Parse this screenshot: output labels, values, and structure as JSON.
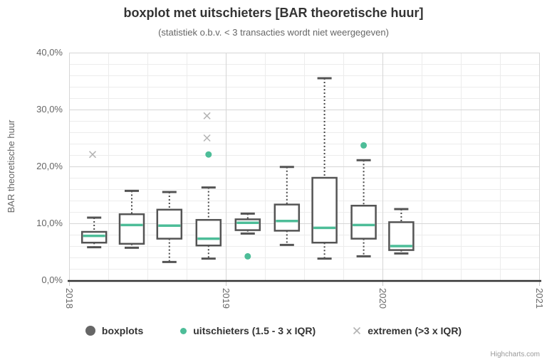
{
  "chart": {
    "title": "boxplot met uitschieters [BAR theoretische huur]",
    "subtitle": "(statistiek o.b.v. < 3 transacties wordt niet weergegeven)",
    "credits": "Highcharts.com"
  },
  "legend": {
    "items": [
      {
        "label": "boxplots"
      },
      {
        "label": "uitschieters (1.5 - 3 x IQR)"
      },
      {
        "label": "extremen (>3 x IQR)"
      }
    ]
  },
  "colors": {
    "title_text": "#333333",
    "subtitle_text": "#666666",
    "axis_text": "#666666",
    "grid_minor": "#ececec",
    "grid_major": "#d6d6d6",
    "axis_line": "#333333",
    "tick": "#cccccc",
    "box_border": "#545454",
    "box_fill": "#ffffff",
    "whisker": "#474747",
    "median": "#4dbd98",
    "outlier": "#4dbd98",
    "extreme": "#b3b3b3",
    "legend_symbol": "#666666",
    "legend_text": "#333333",
    "credits_text": "#999999"
  },
  "chart_data": {
    "type": "boxplot",
    "title": "boxplot met uitschieters [BAR theoretische huur]",
    "subtitle": "(statistiek o.b.v. < 3 transacties wordt niet weergegeven)",
    "ylabel": "BAR theoretische huur",
    "ylim": [
      0,
      40
    ],
    "y_unit": "%",
    "y_major_step": 10,
    "y_minor_step": 2,
    "xlim": [
      2018,
      2021
    ],
    "x_minor_step": 0.25,
    "grid": true,
    "legend_position": "bottom",
    "y_ticks": [
      {
        "v": 0,
        "label": "0,0%"
      },
      {
        "v": 10,
        "label": "10,0%"
      },
      {
        "v": 20,
        "label": "20,0%"
      },
      {
        "v": 30,
        "label": "30,0%"
      },
      {
        "v": 40,
        "label": "40,0%"
      }
    ],
    "x_ticks": [
      {
        "v": 2018,
        "label": "2018"
      },
      {
        "v": 2019,
        "label": "2019"
      },
      {
        "v": 2020,
        "label": "2020"
      },
      {
        "v": 2021,
        "label": "2021"
      }
    ],
    "boxes": [
      {
        "x": 2018.16,
        "low": 5.8,
        "q1": 6.6,
        "median": 7.8,
        "q3": 8.5,
        "high": 11.0
      },
      {
        "x": 2018.4,
        "low": 5.7,
        "q1": 6.4,
        "median": 9.7,
        "q3": 11.6,
        "high": 15.7
      },
      {
        "x": 2018.64,
        "low": 3.2,
        "q1": 7.3,
        "median": 9.6,
        "q3": 12.4,
        "high": 15.5
      },
      {
        "x": 2018.89,
        "low": 3.8,
        "q1": 6.1,
        "median": 7.3,
        "q3": 10.6,
        "high": 16.3
      },
      {
        "x": 2019.14,
        "low": 8.2,
        "q1": 8.8,
        "median": 10.1,
        "q3": 10.7,
        "high": 11.7
      },
      {
        "x": 2019.39,
        "low": 6.2,
        "q1": 8.7,
        "median": 10.4,
        "q3": 13.3,
        "high": 19.9
      },
      {
        "x": 2019.63,
        "low": 3.8,
        "q1": 6.6,
        "median": 9.2,
        "q3": 18.0,
        "high": 35.5
      },
      {
        "x": 2019.88,
        "low": 4.2,
        "q1": 7.3,
        "median": 9.7,
        "q3": 13.1,
        "high": 21.1
      },
      {
        "x": 2020.12,
        "low": 4.7,
        "q1": 5.3,
        "median": 6.0,
        "q3": 10.2,
        "high": 12.5
      }
    ],
    "outliers": [
      {
        "x": 2018.89,
        "y": 22.1
      },
      {
        "x": 2019.14,
        "y": 4.2
      },
      {
        "x": 2019.88,
        "y": 23.7
      }
    ],
    "extremes": [
      {
        "x": 2018.15,
        "y": 22.1
      },
      {
        "x": 2018.88,
        "y": 28.9
      },
      {
        "x": 2018.88,
        "y": 25.0
      }
    ]
  }
}
